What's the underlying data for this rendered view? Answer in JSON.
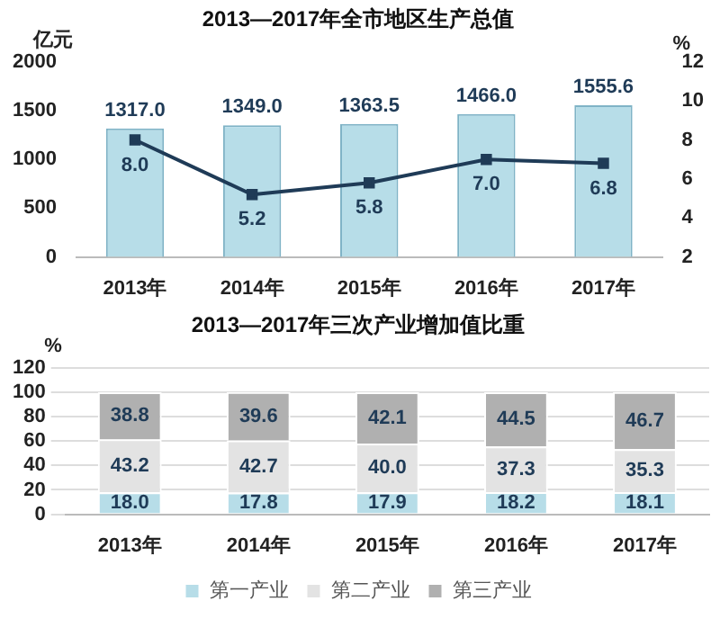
{
  "chart_data": [
    {
      "type": "bar",
      "title": "2013—2017年全市地区生产总值",
      "ylabel": "亿元",
      "y2label": "%",
      "categories": [
        "2013年",
        "2014年",
        "2015年",
        "2016年",
        "2017年"
      ],
      "series": [
        {
          "color": "#b7dde8",
          "values": [
            1317.0,
            1349.0,
            1363.5,
            1466.0,
            1555.6
          ],
          "value_labels": [
            "1317.0",
            "1349.0",
            "1363.5",
            "1466.0",
            "1555.6"
          ]
        },
        {
          "type": "line",
          "axis": "y2",
          "color": "#1f3b57",
          "values": [
            8.0,
            5.2,
            5.8,
            7.0,
            6.8
          ],
          "value_labels": [
            "8.0",
            "5.2",
            "5.8",
            "7.0",
            "6.8"
          ]
        }
      ],
      "ylim": [
        0,
        2000
      ],
      "yticks": [
        0,
        500,
        1000,
        1500,
        2000
      ],
      "y2lim": [
        2,
        12
      ],
      "y2ticks": [
        2,
        4,
        6,
        8,
        10,
        12
      ],
      "marker": "square",
      "line_style": "solid",
      "grid": false,
      "legend": false
    },
    {
      "type": "bar",
      "title": "2013—2017年三次产业增加值比重",
      "ylabel": "%",
      "stacked": true,
      "categories": [
        "2013年",
        "2014年",
        "2015年",
        "2016年",
        "2017年"
      ],
      "series": [
        {
          "name": "第一产业",
          "color": "#b7dde8",
          "values": [
            18.0,
            17.8,
            17.9,
            18.2,
            18.1
          ],
          "value_labels": [
            "18.0",
            "17.8",
            "17.9",
            "18.2",
            "18.1"
          ]
        },
        {
          "name": "第二产业",
          "color": "#e3e3e3",
          "values": [
            43.2,
            42.7,
            40.0,
            37.3,
            35.3
          ],
          "value_labels": [
            "43.2",
            "42.7",
            "40.0",
            "37.3",
            "35.3"
          ]
        },
        {
          "name": "第三产业",
          "color": "#b0b0b0",
          "values": [
            38.8,
            39.6,
            42.1,
            44.5,
            46.7
          ],
          "value_labels": [
            "38.8",
            "39.6",
            "42.1",
            "44.5",
            "46.7"
          ]
        }
      ],
      "ylim": [
        0,
        120
      ],
      "yticks": [
        0,
        20,
        40,
        60,
        80,
        100,
        120
      ],
      "grid": "y",
      "legend": "bottom"
    }
  ]
}
